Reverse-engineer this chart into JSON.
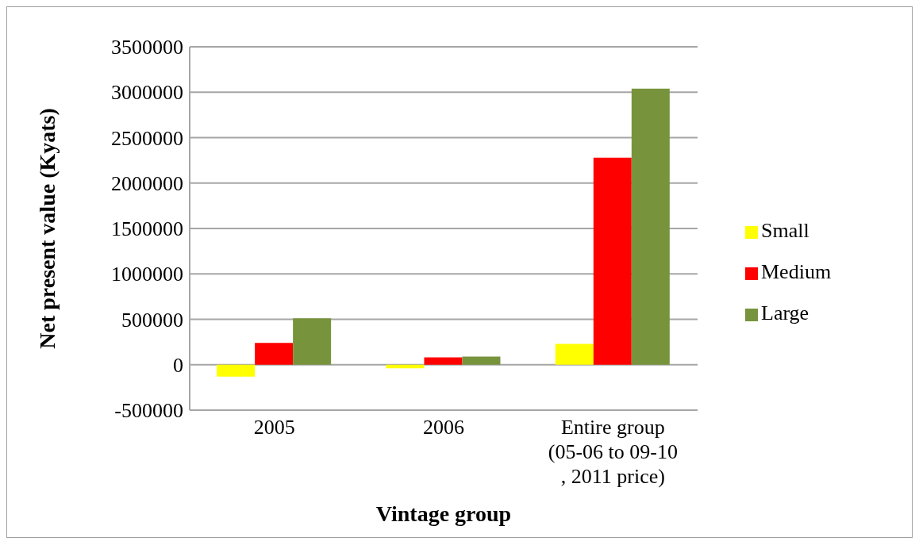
{
  "chart_data": {
    "type": "bar",
    "xlabel": "Vintage group",
    "ylabel": "Net present value (Kyats)",
    "categories": [
      "2005",
      "2006",
      "Entire group (05-06 to 09-10 , 2011 price)"
    ],
    "series": [
      {
        "name": "Small",
        "color": "#ffff00",
        "values": [
          -130000,
          -40000,
          230000
        ]
      },
      {
        "name": "Medium",
        "color": "#ff0000",
        "values": [
          240000,
          80000,
          2280000
        ]
      },
      {
        "name": "Large",
        "color": "#77933c",
        "values": [
          510000,
          90000,
          3040000
        ]
      }
    ],
    "ylim": [
      -500000,
      3500000
    ],
    "yticks": [
      -500000,
      0,
      500000,
      1000000,
      1500000,
      2000000,
      2500000,
      3000000,
      3500000
    ],
    "grid": "y",
    "legend": "right"
  }
}
